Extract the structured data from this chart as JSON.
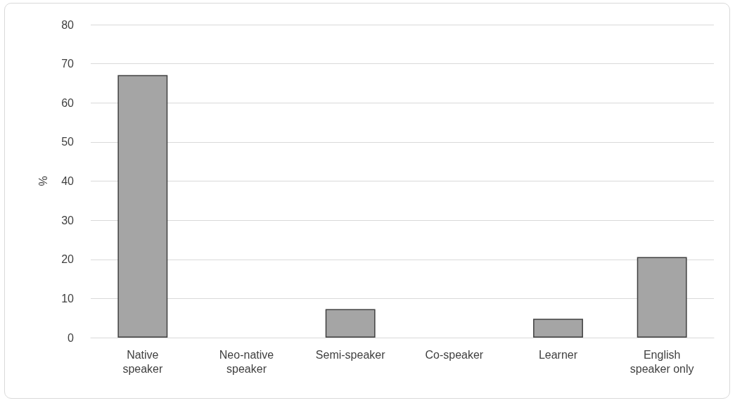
{
  "chart_data": {
    "type": "bar",
    "ylabel": "%",
    "categories": [
      "Native\nspeaker",
      "Neo-native\nspeaker",
      "Semi-speaker",
      "Co-speaker",
      "Learner",
      "English\nspeaker only"
    ],
    "values": [
      67.1,
      0,
      7.3,
      0,
      4.8,
      20.6
    ],
    "color": "#a5a5a5",
    "ylim": [
      0,
      80
    ],
    "yticks": [
      0,
      10,
      20,
      30,
      40,
      50,
      60,
      70,
      80
    ],
    "grid": "y"
  }
}
